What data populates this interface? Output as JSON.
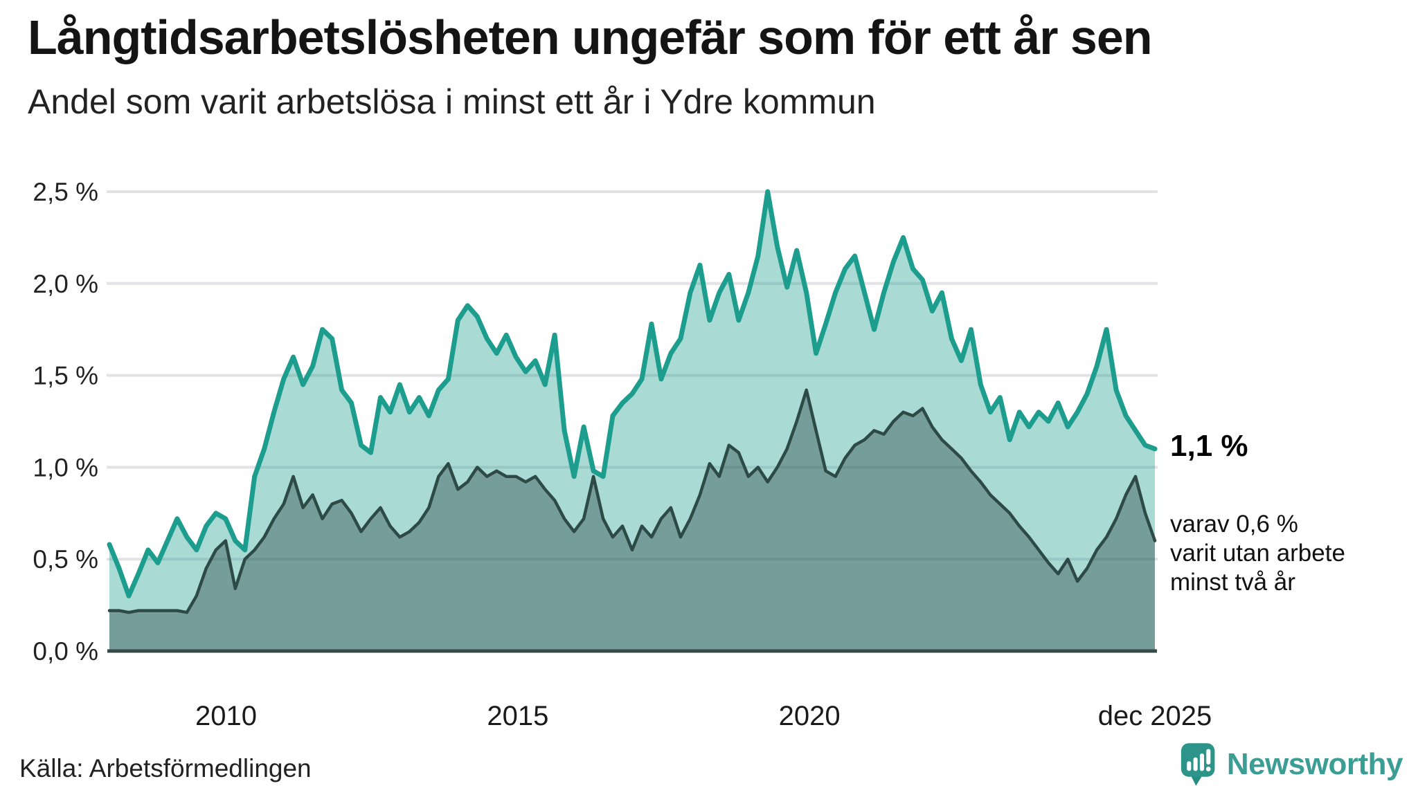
{
  "header": {
    "title": "Långtidsarbetslösheten ungefär som för ett år sen",
    "subtitle": "Andel som varit arbetslösa i minst ett år i Ydre kommun"
  },
  "chart_data": {
    "type": "area",
    "title": "Andel som varit arbetslösa i minst ett år i Ydre kommun",
    "x_start": 2008.0,
    "x_end": 2025.92,
    "ylim": [
      0,
      2.5
    ],
    "grid": "horizontal",
    "gridline_color": "#e3e3e7",
    "axis_line_color": "#374a48",
    "x_ticks": [
      {
        "t": 2010,
        "label": "2010"
      },
      {
        "t": 2015,
        "label": "2015"
      },
      {
        "t": 2020,
        "label": "2020"
      },
      {
        "t": 2025.92,
        "label": "dec 2025"
      }
    ],
    "y_ticks": [
      {
        "v": 0.0,
        "label": "0,0 %"
      },
      {
        "v": 0.5,
        "label": "0,5 %"
      },
      {
        "v": 1.0,
        "label": "1,0 %"
      },
      {
        "v": 1.5,
        "label": "1,5 %"
      },
      {
        "v": 2.0,
        "label": "2,0 %"
      },
      {
        "v": 2.5,
        "label": "2,5 %"
      }
    ],
    "series": [
      {
        "name": "Andel som varit arbetslösa i minst ett år",
        "color": "#1d9d8d",
        "fill": "rgba(29,157,141,0.38)",
        "end_value_label": "1,1 %",
        "values": [
          0.58,
          0.45,
          0.3,
          0.42,
          0.55,
          0.48,
          0.6,
          0.72,
          0.62,
          0.55,
          0.68,
          0.75,
          0.72,
          0.6,
          0.55,
          0.95,
          1.1,
          1.3,
          1.48,
          1.6,
          1.45,
          1.55,
          1.75,
          1.7,
          1.42,
          1.35,
          1.12,
          1.08,
          1.38,
          1.3,
          1.45,
          1.3,
          1.38,
          1.28,
          1.42,
          1.48,
          1.8,
          1.88,
          1.82,
          1.7,
          1.62,
          1.72,
          1.6,
          1.52,
          1.58,
          1.45,
          1.72,
          1.2,
          0.95,
          1.22,
          0.98,
          0.95,
          1.28,
          1.35,
          1.4,
          1.48,
          1.78,
          1.48,
          1.62,
          1.7,
          1.95,
          2.1,
          1.8,
          1.95,
          2.05,
          1.8,
          1.95,
          2.15,
          2.5,
          2.2,
          1.98,
          2.18,
          1.95,
          1.62,
          1.78,
          1.95,
          2.08,
          2.15,
          1.95,
          1.75,
          1.95,
          2.12,
          2.25,
          2.08,
          2.02,
          1.85,
          1.95,
          1.7,
          1.58,
          1.75,
          1.45,
          1.3,
          1.38,
          1.15,
          1.3,
          1.22,
          1.3,
          1.25,
          1.35,
          1.22,
          1.3,
          1.4,
          1.55,
          1.75,
          1.42,
          1.28,
          1.2,
          1.12,
          1.1
        ]
      },
      {
        "name": "varav utan arbete minst två år",
        "color": "#2e4a47",
        "fill": "rgba(46,74,71,0.42)",
        "end_value_label": "0,6 %",
        "values": [
          0.22,
          0.22,
          0.21,
          0.22,
          0.22,
          0.22,
          0.22,
          0.22,
          0.21,
          0.3,
          0.45,
          0.55,
          0.6,
          0.34,
          0.5,
          0.55,
          0.62,
          0.72,
          0.8,
          0.95,
          0.78,
          0.85,
          0.72,
          0.8,
          0.82,
          0.75,
          0.65,
          0.72,
          0.78,
          0.68,
          0.62,
          0.65,
          0.7,
          0.78,
          0.95,
          1.02,
          0.88,
          0.92,
          1.0,
          0.95,
          0.98,
          0.95,
          0.95,
          0.92,
          0.95,
          0.88,
          0.82,
          0.72,
          0.65,
          0.72,
          0.95,
          0.72,
          0.62,
          0.68,
          0.55,
          0.68,
          0.62,
          0.72,
          0.78,
          0.62,
          0.72,
          0.85,
          1.02,
          0.95,
          1.12,
          1.08,
          0.95,
          1.0,
          0.92,
          1.0,
          1.1,
          1.25,
          1.42,
          1.2,
          0.98,
          0.95,
          1.05,
          1.12,
          1.15,
          1.2,
          1.18,
          1.25,
          1.3,
          1.28,
          1.32,
          1.22,
          1.15,
          1.1,
          1.05,
          0.98,
          0.92,
          0.85,
          0.8,
          0.75,
          0.68,
          0.62,
          0.55,
          0.48,
          0.42,
          0.5,
          0.38,
          0.45,
          0.55,
          0.62,
          0.72,
          0.85,
          0.95,
          0.75,
          0.6
        ]
      }
    ]
  },
  "annotations": {
    "primary_value": "1,1 %",
    "secondary_lines": [
      "varav 0,6 %",
      "varit utan arbete",
      "minst två år"
    ]
  },
  "footer": {
    "source": "Källa: Arbetsförmedlingen",
    "logo": {
      "text": "Newsworthy",
      "color": "#3b9e94",
      "icon_color": "#2c9488",
      "icon": "newsworthy-speech-bubble-bar-chart"
    }
  }
}
